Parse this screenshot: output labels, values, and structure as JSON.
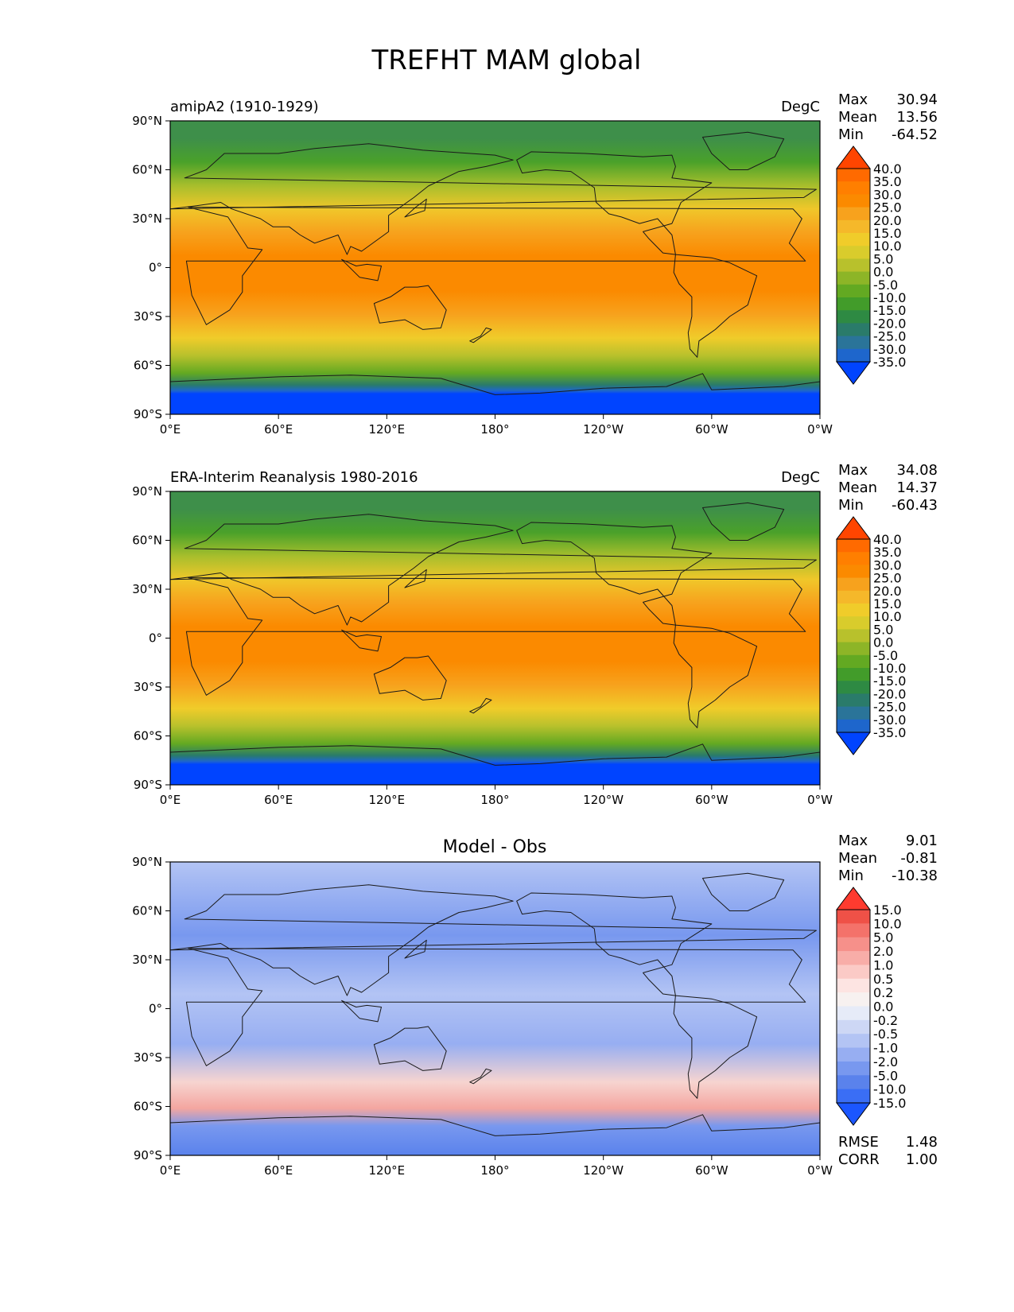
{
  "figure": {
    "title": "TREFHT MAM global"
  },
  "axes": {
    "lat_ticks": [
      "90°N",
      "60°N",
      "30°N",
      "0°",
      "30°S",
      "60°S",
      "90°S"
    ],
    "lon_ticks": [
      "0°E",
      "60°E",
      "120°E",
      "180°",
      "120°W",
      "60°W",
      "0°W"
    ]
  },
  "panels": [
    {
      "id": "model",
      "left_title": "amipA2 (1910-1929)",
      "center_title": "",
      "right_title": "DegC",
      "stats": [
        {
          "label": "Max",
          "value": "30.94"
        },
        {
          "label": "Mean",
          "value": "13.56"
        },
        {
          "label": "Min",
          "value": "-64.52"
        }
      ],
      "colorbar": {
        "levels": [
          "40.0",
          "35.0",
          "30.0",
          "25.0",
          "20.0",
          "15.0",
          "10.0",
          "5.0",
          "0.0",
          "-5.0",
          "-10.0",
          "-15.0",
          "-20.0",
          "-25.0",
          "-30.0",
          "-35.0"
        ],
        "colors": [
          "#ff4500",
          "#ff6a00",
          "#ff7f00",
          "#fb8a00",
          "#f7a21d",
          "#f5b82a",
          "#f0cc2a",
          "#d9cc2c",
          "#b8c12c",
          "#8db527",
          "#63a922",
          "#429c2a",
          "#2e8a43",
          "#2a7b6a",
          "#2a7499",
          "#1e66cc",
          "#0044ff"
        ]
      },
      "extra_stats": []
    },
    {
      "id": "obs",
      "left_title": "ERA-Interim Reanalysis 1980-2016",
      "center_title": "",
      "right_title": "DegC",
      "stats": [
        {
          "label": "Max",
          "value": "34.08"
        },
        {
          "label": "Mean",
          "value": "14.37"
        },
        {
          "label": "Min",
          "value": "-60.43"
        }
      ],
      "colorbar": {
        "levels": [
          "40.0",
          "35.0",
          "30.0",
          "25.0",
          "20.0",
          "15.0",
          "10.0",
          "5.0",
          "0.0",
          "-5.0",
          "-10.0",
          "-15.0",
          "-20.0",
          "-25.0",
          "-30.0",
          "-35.0"
        ],
        "colors": [
          "#ff4500",
          "#ff6a00",
          "#ff7f00",
          "#fb8a00",
          "#f7a21d",
          "#f5b82a",
          "#f0cc2a",
          "#d9cc2c",
          "#b8c12c",
          "#8db527",
          "#63a922",
          "#429c2a",
          "#2e8a43",
          "#2a7b6a",
          "#2a7499",
          "#1e66cc",
          "#0044ff"
        ]
      },
      "extra_stats": []
    },
    {
      "id": "diff",
      "left_title": "",
      "center_title": "Model - Obs",
      "right_title": "",
      "stats": [
        {
          "label": "Max",
          "value": "9.01"
        },
        {
          "label": "Mean",
          "value": "-0.81"
        },
        {
          "label": "Min",
          "value": "-10.38"
        }
      ],
      "colorbar": {
        "levels": [
          "15.0",
          "10.0",
          "5.0",
          "2.0",
          "1.0",
          "0.5",
          "0.2",
          "0.0",
          "-0.2",
          "-0.5",
          "-1.0",
          "-2.0",
          "-5.0",
          "-10.0",
          "-15.0"
        ],
        "colors": [
          "#ff3b2f",
          "#ef5147",
          "#f4726a",
          "#f6908a",
          "#f8ada8",
          "#fbcac6",
          "#fde4e2",
          "#f7f1f0",
          "#e6ebf8",
          "#cdd7f5",
          "#b3c4f4",
          "#97aef2",
          "#7898ef",
          "#5a82ec",
          "#3a6ef5",
          "#1b56ff"
        ]
      },
      "extra_stats": [
        {
          "label": "RMSE",
          "value": "1.48"
        },
        {
          "label": "CORR",
          "value": "1.00"
        }
      ]
    }
  ]
}
